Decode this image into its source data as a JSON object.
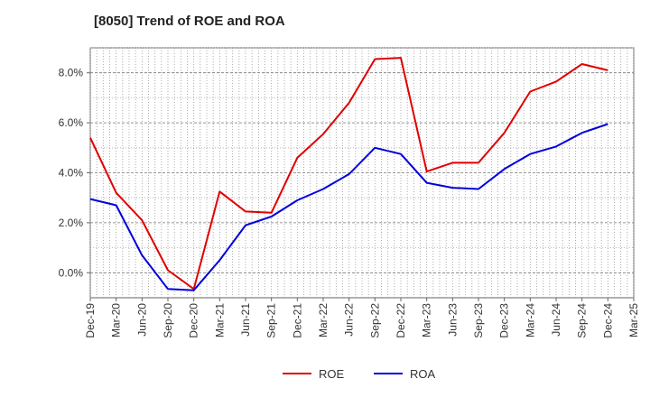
{
  "chart_data": {
    "type": "line",
    "title": "[8050]  Trend of ROE and ROA",
    "xlabel": "",
    "ylabel": "",
    "x": [
      "Dec-19",
      "Mar-20",
      "Jun-20",
      "Sep-20",
      "Dec-20",
      "Mar-21",
      "Jun-21",
      "Sep-21",
      "Dec-21",
      "Mar-22",
      "Jun-22",
      "Sep-22",
      "Dec-22",
      "Mar-23",
      "Jun-23",
      "Sep-23",
      "Dec-23",
      "Mar-24",
      "Jun-24",
      "Sep-24",
      "Dec-24",
      "Mar-25"
    ],
    "ylim": [
      -1.0,
      9.0
    ],
    "yticks": [
      0,
      2,
      4,
      6,
      8
    ],
    "ytick_labels": [
      "0.0%",
      "2.0%",
      "4.0%",
      "6.0%",
      "8.0%"
    ],
    "grid": true,
    "legend_position": "bottom",
    "series": [
      {
        "name": "ROE",
        "color": "#e00000",
        "values": [
          5.4,
          3.2,
          2.1,
          0.1,
          -0.65,
          3.25,
          2.45,
          2.4,
          4.6,
          5.55,
          6.8,
          8.55,
          8.6,
          4.05,
          4.4,
          4.4,
          5.6,
          7.25,
          7.65,
          8.35,
          8.1,
          null
        ]
      },
      {
        "name": "ROA",
        "color": "#0000dd",
        "values": [
          2.95,
          2.7,
          0.7,
          -0.65,
          -0.7,
          0.5,
          1.9,
          2.25,
          2.9,
          3.35,
          3.95,
          5.0,
          4.75,
          3.6,
          3.4,
          3.35,
          4.15,
          4.75,
          5.05,
          5.6,
          5.95,
          null
        ]
      }
    ]
  }
}
